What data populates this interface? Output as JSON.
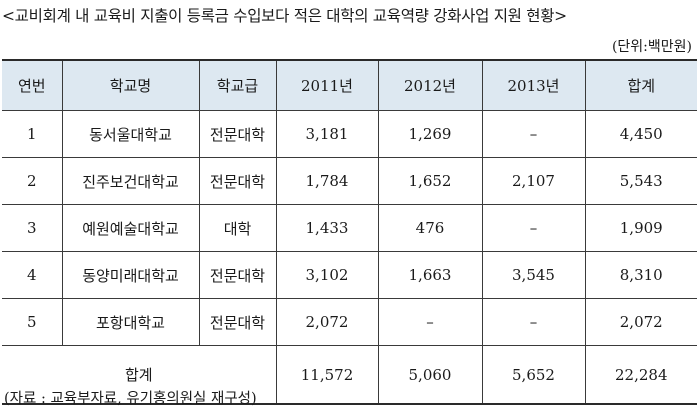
{
  "title": "<교비회계 내 교육비 지출이 등록금 수입보다 적은 대학의 교육역량 강화사업 지원 현황>",
  "unit": "(단위:백만원)",
  "table": {
    "headers": [
      "연번",
      "학교명",
      "학교급",
      "2011년",
      "2012년",
      "2013년",
      "합계"
    ],
    "rows": [
      [
        "1",
        "동서울대학교",
        "전문대학",
        "3,181",
        "1,269",
        "–",
        "4,450"
      ],
      [
        "2",
        "진주보건대학교",
        "전문대학",
        "1,784",
        "1,652",
        "2,107",
        "5,543"
      ],
      [
        "3",
        "예원예술대학교",
        "대학",
        "1,433",
        "476",
        "–",
        "1,909"
      ],
      [
        "4",
        "동양미래대학교",
        "전문대학",
        "3,102",
        "1,663",
        "3,545",
        "8,310"
      ],
      [
        "5",
        "포항대학교",
        "전문대학",
        "2,072",
        "–",
        "–",
        "2,072"
      ]
    ],
    "total": {
      "label": "합계",
      "values": [
        "11,572",
        "5,060",
        "5,652",
        "22,284"
      ]
    }
  },
  "source": "(자료 : 교육부자료, 유기홍의원실 재구성)",
  "colors": {
    "header_bg": "#dde8f1",
    "border": "#3a3a3a"
  }
}
